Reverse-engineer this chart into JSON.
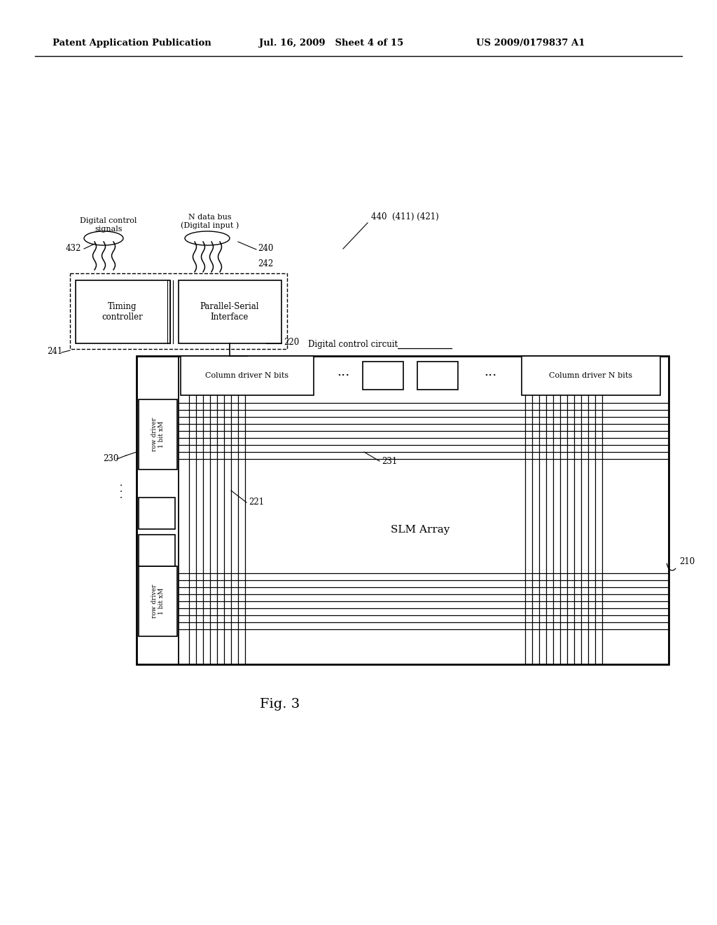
{
  "bg_color": "#ffffff",
  "header_left": "Patent Application Publication",
  "header_mid": "Jul. 16, 2009   Sheet 4 of 15",
  "header_right": "US 2009/0179837 A1",
  "fig_label": "Fig. 3"
}
